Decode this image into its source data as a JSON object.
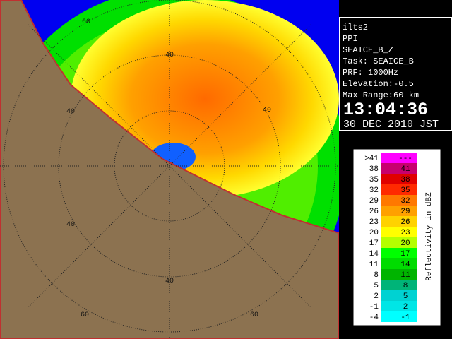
{
  "ring_labels": [
    "60",
    "40",
    "40",
    "40",
    "40",
    "40",
    "60",
    "60"
  ],
  "info": {
    "lines": [
      "ilts2",
      "PPI",
      "SEAICE_B_Z",
      "Task: SEAICE_B",
      "PRF: 1000Hz",
      "Elevation:-0.5",
      "Max Range:60 km"
    ],
    "time": "13:04:36",
    "date": "30 DEC 2010 JST"
  },
  "legend": {
    "title": "Reflectivity in dBZ",
    "rows": [
      {
        "low": ">41",
        "high": "---",
        "color": "#ff00ff"
      },
      {
        "low": "38",
        "high": "41",
        "color": "#c8006e"
      },
      {
        "low": "35",
        "high": "38",
        "color": "#e00000"
      },
      {
        "low": "32",
        "high": "35",
        "color": "#ff2a00"
      },
      {
        "low": "29",
        "high": "32",
        "color": "#ff7800"
      },
      {
        "low": "26",
        "high": "29",
        "color": "#ffa000"
      },
      {
        "low": "23",
        "high": "26",
        "color": "#ffd200"
      },
      {
        "low": "20",
        "high": "23",
        "color": "#ffff00"
      },
      {
        "low": "17",
        "high": "20",
        "color": "#b4ff00"
      },
      {
        "low": "14",
        "high": "17",
        "color": "#00ff00"
      },
      {
        "low": "11",
        "high": "14",
        "color": "#00dc00"
      },
      {
        "low": "8",
        "high": "11",
        "color": "#00b400"
      },
      {
        "low": "5",
        "high": "8",
        "color": "#00b478"
      },
      {
        "low": "2",
        "high": "5",
        "color": "#00d2d2"
      },
      {
        "low": "-1",
        "high": "2",
        "color": "#00e6e6"
      },
      {
        "low": "-4",
        "high": "-1",
        "color": "#00ffff"
      }
    ]
  }
}
